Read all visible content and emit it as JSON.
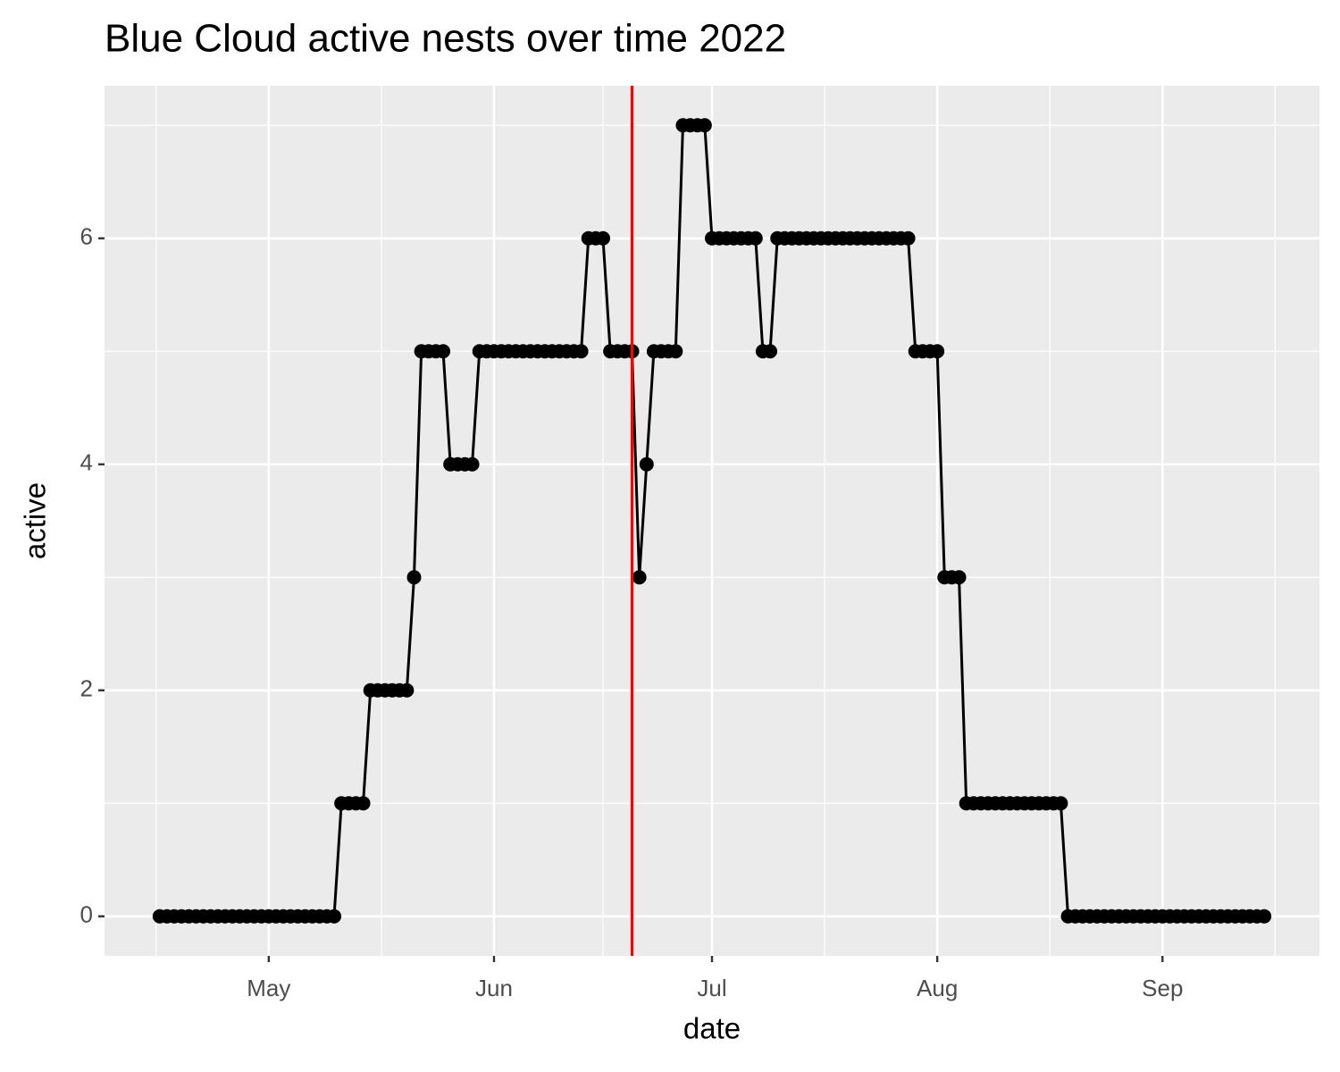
{
  "chart_data": {
    "type": "line",
    "title": "Blue Cloud active nests over time 2022",
    "x_label": "date",
    "y_label": "active",
    "x": [
      106,
      107,
      108,
      109,
      110,
      111,
      112,
      113,
      114,
      115,
      116,
      117,
      118,
      119,
      120,
      121,
      122,
      123,
      124,
      125,
      126,
      127,
      128,
      129,
      130,
      131,
      132,
      133,
      134,
      135,
      136,
      137,
      138,
      139,
      140,
      141,
      142,
      143,
      144,
      145,
      146,
      147,
      148,
      149,
      150,
      151,
      152,
      153,
      154,
      155,
      156,
      157,
      158,
      159,
      160,
      161,
      162,
      163,
      164,
      165,
      166,
      167,
      168,
      169,
      170,
      171,
      172,
      173,
      174,
      175,
      176,
      177,
      178,
      179,
      180,
      181,
      182,
      183,
      184,
      185,
      186,
      187,
      188,
      189,
      190,
      191,
      192,
      193,
      194,
      195,
      196,
      197,
      198,
      199,
      200,
      201,
      202,
      203,
      204,
      205,
      206,
      207,
      208,
      209,
      210,
      211,
      212,
      213,
      214,
      215,
      216,
      217,
      218,
      219,
      220,
      221,
      222,
      223,
      224,
      225,
      226,
      227,
      228,
      229,
      230,
      231,
      232,
      233,
      234,
      235,
      236,
      237,
      238,
      239,
      240,
      241,
      242,
      243,
      244,
      245,
      246,
      247,
      248,
      249,
      250,
      251,
      252,
      253,
      254,
      255,
      256,
      257,
      258
    ],
    "values": [
      0,
      0,
      0,
      0,
      0,
      0,
      0,
      0,
      0,
      0,
      0,
      0,
      0,
      0,
      0,
      0,
      0,
      0,
      0,
      0,
      0,
      0,
      0,
      0,
      0,
      1,
      1,
      1,
      1,
      2,
      2,
      2,
      2,
      2,
      2,
      3,
      5,
      5,
      5,
      5,
      4,
      4,
      4,
      4,
      5,
      5,
      5,
      5,
      5,
      5,
      5,
      5,
      5,
      5,
      5,
      5,
      5,
      5,
      5,
      6,
      6,
      6,
      5,
      5,
      5,
      5,
      3,
      4,
      5,
      5,
      5,
      5,
      7,
      7,
      7,
      7,
      6,
      6,
      6,
      6,
      6,
      6,
      6,
      5,
      5,
      6,
      6,
      6,
      6,
      6,
      6,
      6,
      6,
      6,
      6,
      6,
      6,
      6,
      6,
      6,
      6,
      6,
      6,
      6,
      5,
      5,
      5,
      5,
      3,
      3,
      3,
      1,
      1,
      1,
      1,
      1,
      1,
      1,
      1,
      1,
      1,
      1,
      1,
      1,
      1,
      0,
      0,
      0,
      0,
      0,
      0,
      0,
      0,
      0,
      0,
      0,
      0,
      0,
      0,
      0,
      0,
      0,
      0,
      0,
      0,
      0,
      0,
      0,
      0,
      0,
      0,
      0,
      0
    ],
    "color": "#000000",
    "vline": 171,
    "vline_color": "#ff0000",
    "xlim": [
      98.4,
      265.6
    ],
    "xticks": [
      {
        "value": 121,
        "label": "May"
      },
      {
        "value": 152,
        "label": "Jun"
      },
      {
        "value": 182,
        "label": "Jul"
      },
      {
        "value": 213,
        "label": "Aug"
      },
      {
        "value": 244,
        "label": "Sep"
      }
    ],
    "ylim": [
      -0.35,
      7.35
    ],
    "yticks": [
      0,
      2,
      4,
      6
    ],
    "grid": true
  }
}
